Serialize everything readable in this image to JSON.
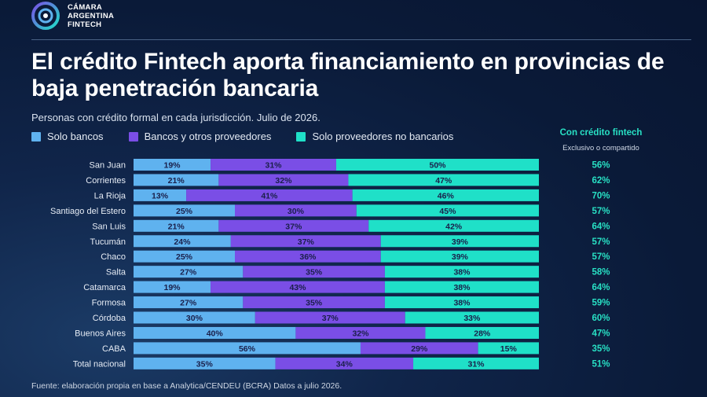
{
  "brand": {
    "line1": "CÁMARA",
    "line2": "ARGENTINA",
    "line3": "FINTECH"
  },
  "header": {
    "title": "El crédito Fintech aporta financiamiento en provincias de baja penetración bancaria",
    "subtitle": "Personas con crédito formal en cada jurisdicción. Julio de 2026."
  },
  "legend": [
    {
      "label": "Solo bancos",
      "color": "#5fb2ef"
    },
    {
      "label": "Bancos y otros proveedores",
      "color": "#7a4ee6"
    },
    {
      "label": "Solo proveedores no bancarios",
      "color": "#1fe0c8"
    }
  ],
  "side_column": {
    "title": "Con crédito fintech",
    "subtitle": "Exclusivo o compartido",
    "color": "#28e0c4"
  },
  "chart_data": {
    "type": "bar",
    "orientation": "horizontal",
    "stacked": true,
    "percent_stacked": true,
    "categories": [
      "San Juan",
      "Corrientes",
      "La Rioja",
      "Santiago del Estero",
      "San Luis",
      "Tucumán",
      "Chaco",
      "Salta",
      "Catamarca",
      "Formosa",
      "Córdoba",
      "Buenos Aires",
      "CABA",
      "Total nacional"
    ],
    "series": [
      {
        "name": "Solo bancos",
        "color": "#5fb2ef",
        "values": [
          19,
          21,
          13,
          25,
          21,
          24,
          25,
          27,
          19,
          27,
          30,
          40,
          56,
          35
        ]
      },
      {
        "name": "Bancos y otros proveedores",
        "color": "#7a4ee6",
        "values": [
          31,
          32,
          41,
          30,
          37,
          37,
          36,
          35,
          43,
          35,
          37,
          32,
          29,
          34
        ]
      },
      {
        "name": "Solo proveedores no bancarios",
        "color": "#1fe0c8",
        "values": [
          50,
          47,
          46,
          45,
          42,
          39,
          39,
          38,
          38,
          38,
          33,
          28,
          15,
          31
        ]
      }
    ],
    "fintech_share": [
      "56%",
      "62%",
      "70%",
      "57%",
      "64%",
      "57%",
      "57%",
      "58%",
      "64%",
      "59%",
      "60%",
      "47%",
      "35%",
      "51%"
    ],
    "value_suffix": "%",
    "xlim": [
      0,
      100
    ]
  },
  "source": "Fuente: elaboración propia en base a Analytica/CENDEU (BCRA) Datos a julio 2026."
}
